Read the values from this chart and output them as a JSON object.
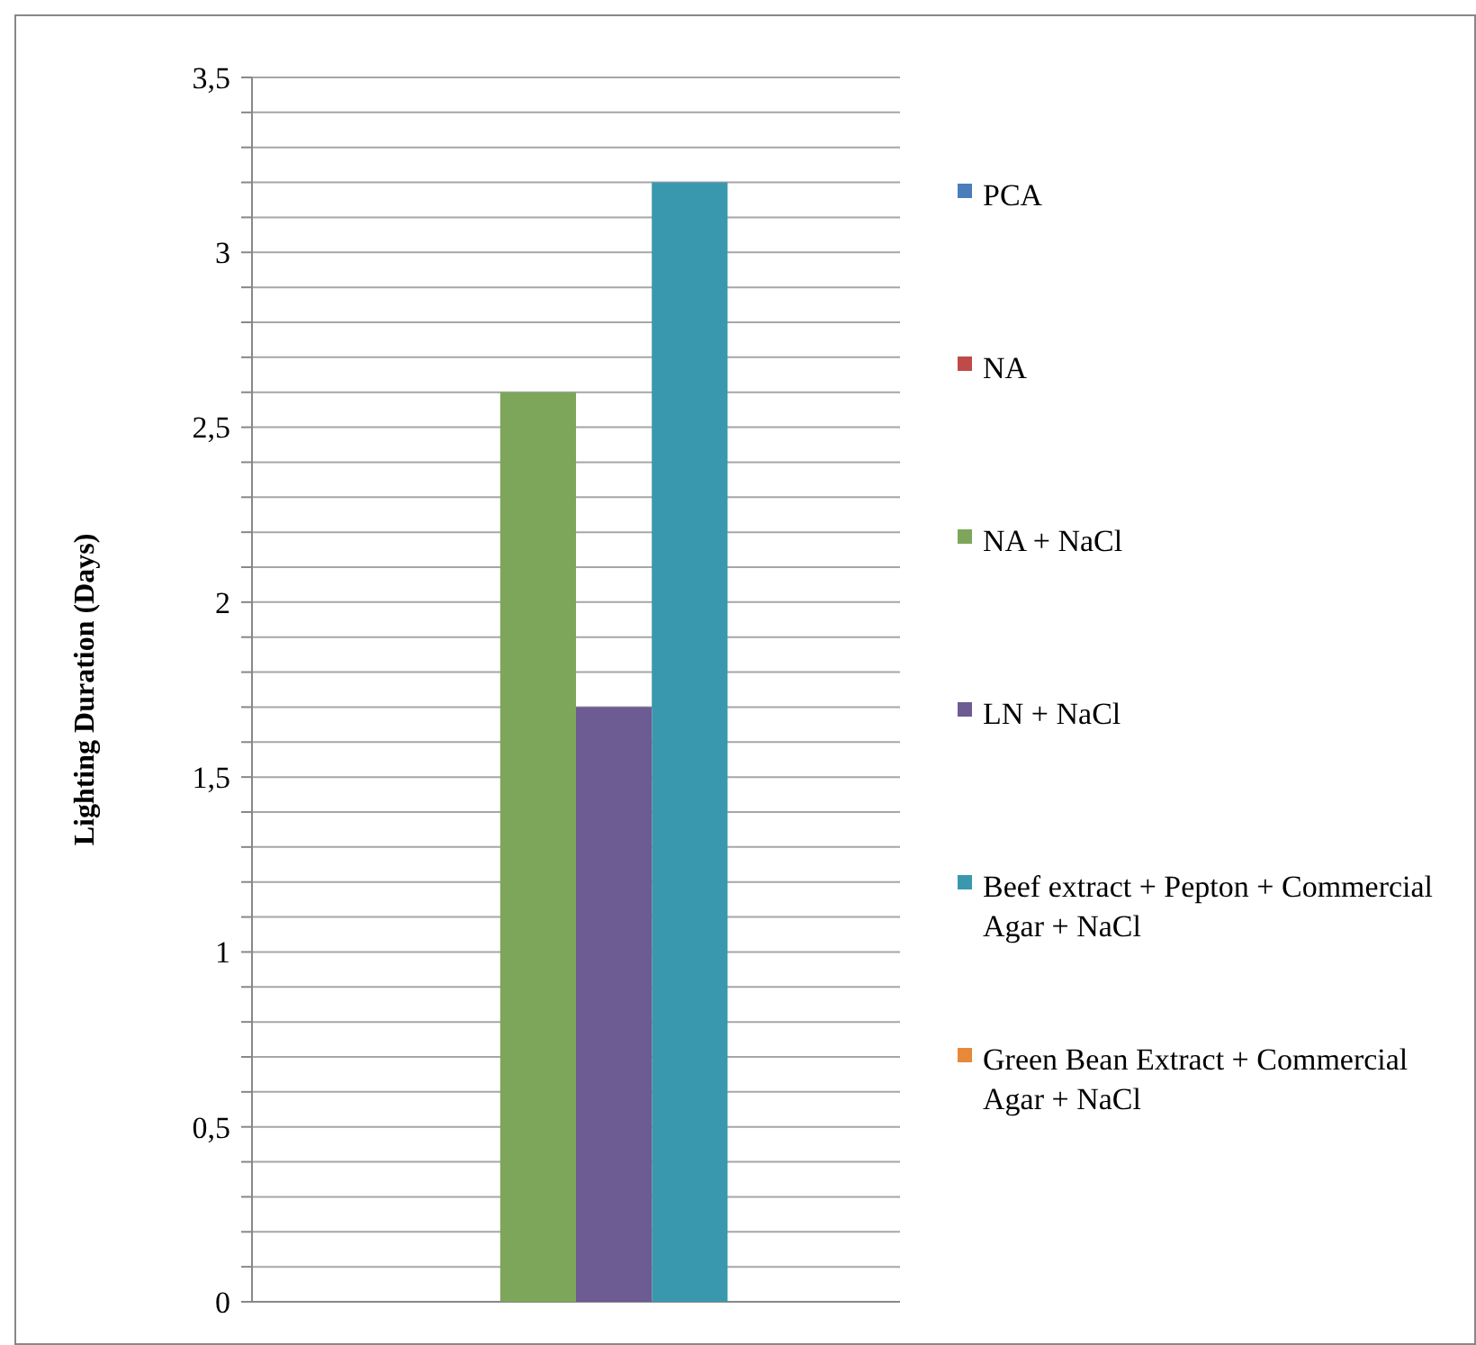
{
  "chart_data": {
    "type": "bar",
    "ylabel": "Lighting Duration (Days)",
    "categories": [
      null
    ],
    "series": [
      {
        "name": "PCA",
        "color": "#4a7ebb",
        "values": [
          0
        ]
      },
      {
        "name": "NA",
        "color": "#be4b48",
        "values": [
          0
        ]
      },
      {
        "name": "NA + NaCl",
        "color": "#7ea65a",
        "values": [
          2.6
        ]
      },
      {
        "name": "LN + NaCl",
        "color": "#6d5b93",
        "values": [
          1.7
        ]
      },
      {
        "name": "Beef extract + Pepton + Commercial Agar + NaCl",
        "color": "#3a98ae",
        "values": [
          3.2
        ]
      },
      {
        "name": "Green Bean Extract + Commercial Agar + NaCl",
        "color": "#e8883a",
        "values": [
          0
        ]
      }
    ],
    "ylim": [
      0,
      3.5
    ],
    "yticks": [
      {
        "value": 0,
        "label": "0"
      },
      {
        "value": 0.1,
        "label": null
      },
      {
        "value": 0.2,
        "label": null
      },
      {
        "value": 0.3,
        "label": null
      },
      {
        "value": 0.4,
        "label": null
      },
      {
        "value": 0.5,
        "label": "0,5"
      },
      {
        "value": 0.6,
        "label": null
      },
      {
        "value": 0.7,
        "label": null
      },
      {
        "value": 0.8,
        "label": null
      },
      {
        "value": 0.9,
        "label": null
      },
      {
        "value": 1,
        "label": "1"
      },
      {
        "value": 1.1,
        "label": null
      },
      {
        "value": 1.2,
        "label": null
      },
      {
        "value": 1.3,
        "label": null
      },
      {
        "value": 1.4,
        "label": null
      },
      {
        "value": 1.5,
        "label": "1,5"
      },
      {
        "value": 1.6,
        "label": null
      },
      {
        "value": 1.7,
        "label": null
      },
      {
        "value": 1.8,
        "label": null
      },
      {
        "value": 1.9,
        "label": null
      },
      {
        "value": 2,
        "label": "2"
      },
      {
        "value": 2.1,
        "label": null
      },
      {
        "value": 2.2,
        "label": null
      },
      {
        "value": 2.3,
        "label": null
      },
      {
        "value": 2.4,
        "label": null
      },
      {
        "value": 2.5,
        "label": "2,5"
      },
      {
        "value": 2.6,
        "label": null
      },
      {
        "value": 2.7,
        "label": null
      },
      {
        "value": 2.8,
        "label": null
      },
      {
        "value": 2.9,
        "label": null
      },
      {
        "value": 3,
        "label": "3"
      },
      {
        "value": 3.1,
        "label": null
      },
      {
        "value": 3.2,
        "label": null
      },
      {
        "value": 3.3,
        "label": null
      },
      {
        "value": 3.4,
        "label": null
      },
      {
        "value": 3.5,
        "label": "3,5"
      }
    ],
    "grid": "y",
    "legend": "right"
  }
}
